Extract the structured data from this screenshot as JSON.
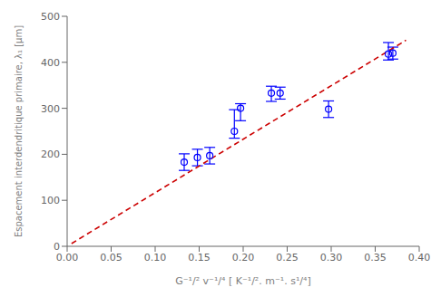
{
  "chart_data": {
    "type": "scatter",
    "xlabel": "G⁻¹/² v⁻¹/⁴ [ K⁻¹/². m⁻¹. s¹/⁴]",
    "ylabel": "Espacement interdendritique primaire, λ₁ [μm]",
    "xlim": [
      0.0,
      0.4
    ],
    "ylim": [
      0,
      500
    ],
    "xticks": [
      {
        "value": 0.0,
        "label": "0.00"
      },
      {
        "value": 0.05,
        "label": "0.05"
      },
      {
        "value": 0.1,
        "label": "0.10"
      },
      {
        "value": 0.15,
        "label": "0.15"
      },
      {
        "value": 0.2,
        "label": "0.20"
      },
      {
        "value": 0.25,
        "label": "0.25"
      },
      {
        "value": 0.3,
        "label": "0.30"
      },
      {
        "value": 0.35,
        "label": "0.35"
      },
      {
        "value": 0.4,
        "label": "0.40"
      }
    ],
    "yticks": [
      0,
      100,
      200,
      300,
      400,
      500
    ],
    "grid": false,
    "series": [
      {
        "type": "line",
        "x": [
          0.005,
          0.385
        ],
        "values": [
          6,
          448
        ],
        "color": "#cc0000",
        "line_style": "--"
      },
      {
        "type": "scatter",
        "x": [
          0.133,
          0.148,
          0.162,
          0.19,
          0.197,
          0.232,
          0.242,
          0.297,
          0.365,
          0.37
        ],
        "values": [
          183,
          193,
          197,
          250,
          300,
          333,
          333,
          298,
          418,
          420
        ],
        "y_err_low": [
          18,
          18,
          18,
          15,
          27,
          18,
          13,
          18,
          13,
          13
        ],
        "y_err_high": [
          18,
          18,
          18,
          47,
          10,
          15,
          13,
          18,
          25,
          13
        ],
        "color": "blue",
        "marker": "o"
      }
    ]
  }
}
